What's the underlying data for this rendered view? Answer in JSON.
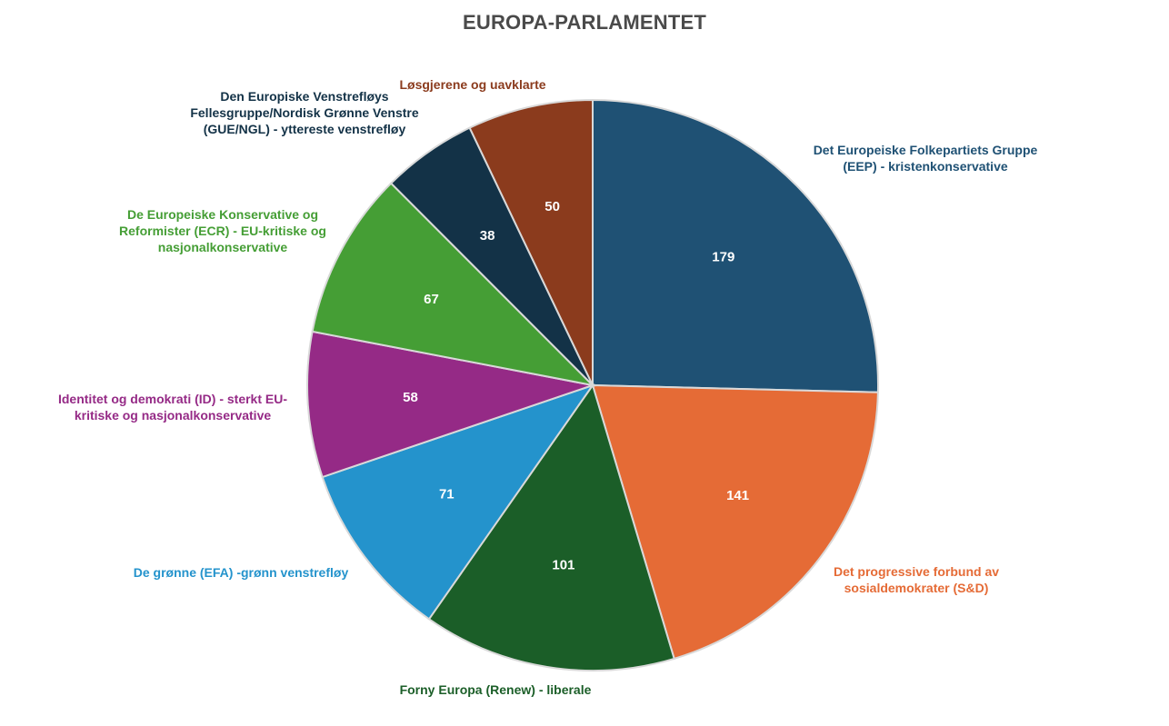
{
  "chart_data": {
    "type": "pie",
    "title": "EUROPA-PARLAMENTET",
    "slices": [
      {
        "label": "Det Europeiske Folkepartiets Gruppe (EEP) - kristenkonservative",
        "value": 179,
        "color": "#1f5174"
      },
      {
        "label": "Det progressive forbund av sosialdemokrater (S&D)",
        "value": 141,
        "color": "#e56b36"
      },
      {
        "label": "Forny Europa (Renew) - liberale",
        "value": 101,
        "color": "#1b5e28"
      },
      {
        "label": "De grønne (EFA) -grønn venstrefløy",
        "value": 71,
        "color": "#2493cc"
      },
      {
        "label": "Identitet og demokrati (ID) - sterkt EU-kritiske og nasjonalkonservative",
        "value": 58,
        "color": "#952a86"
      },
      {
        "label": "De Europeiske Konservative og Reformister (ECR) - EU-kritiske og nasjonalkonservative",
        "value": 67,
        "color": "#459e35"
      },
      {
        "label": "Den Europiske Venstrefløys Fellesgruppe/Nordisk Grønne Venstre (GUE/NGL) - yttereste venstrefløy",
        "value": 38,
        "color": "#133247"
      },
      {
        "label": "Løsgjerene og uavklarte",
        "value": 50,
        "color": "#8b3b1d"
      }
    ]
  }
}
